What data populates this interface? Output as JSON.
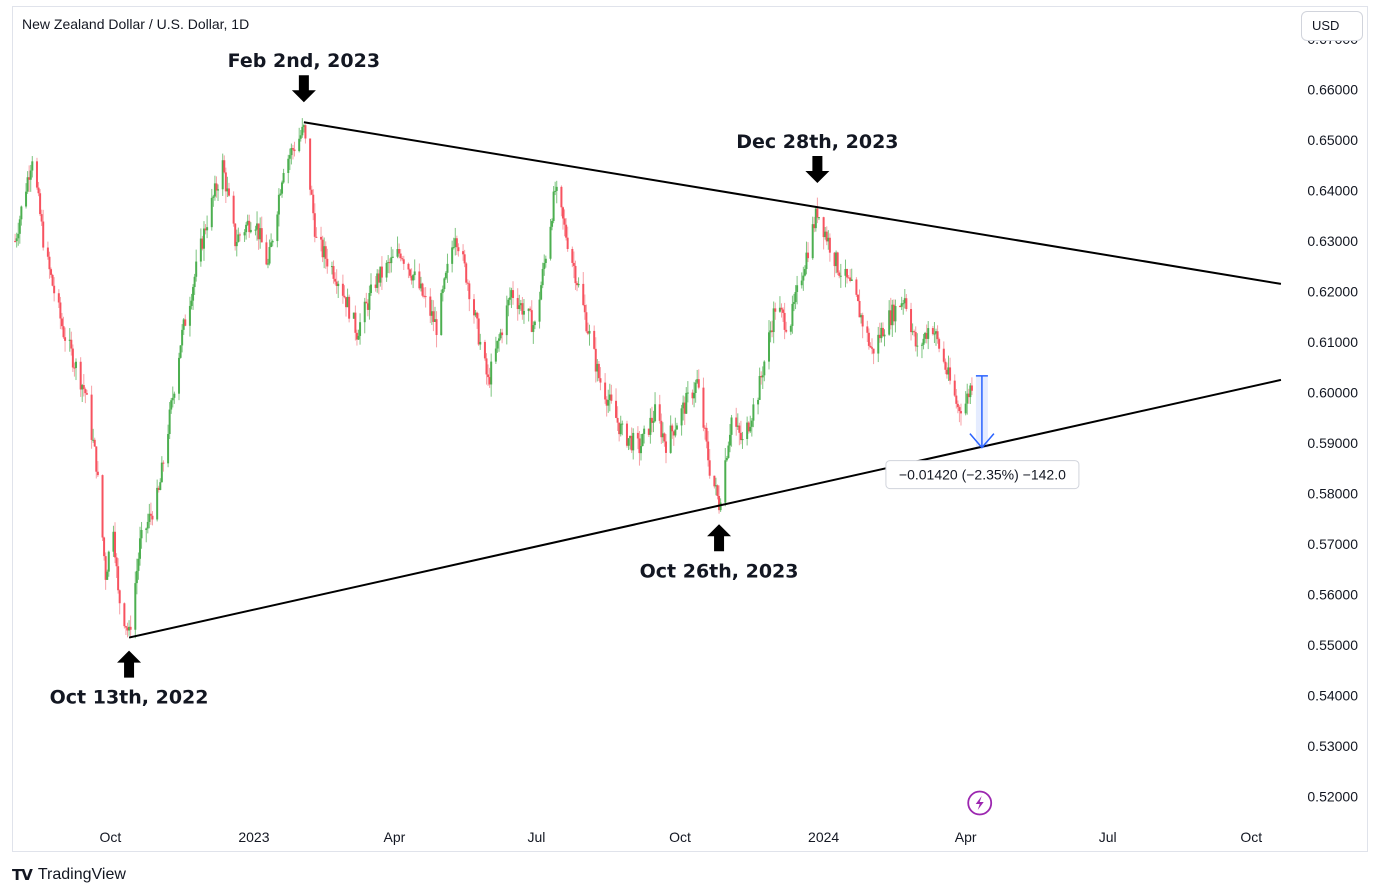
{
  "header": {
    "title": "New Zealand Dollar / U.S. Dollar, 1D",
    "currency_button": "USD"
  },
  "footer": {
    "brand": "TradingView",
    "brand_logo": "TV"
  },
  "colors": {
    "up": "#4caf50",
    "down": "#f7525f",
    "wick_up": "#7cc47f",
    "wick_down": "#f7a0a6",
    "trendline": "#000000",
    "measure": "#2962ff",
    "badge": "#9c27b0"
  },
  "chart_data": {
    "type": "candlestick",
    "title": "New Zealand Dollar / U.S. Dollar, 1D",
    "y_axis": {
      "position": "right",
      "ylim": [
        0.515,
        0.6765
      ],
      "ticks": [
        "0.67000",
        "0.66000",
        "0.65000",
        "0.64000",
        "0.63000",
        "0.62000",
        "0.61000",
        "0.60000",
        "0.59000",
        "0.58000",
        "0.57000",
        "0.56000",
        "0.55000",
        "0.54000",
        "0.53000",
        "0.52000"
      ]
    },
    "x_axis": {
      "ticks": [
        {
          "label": "Oct",
          "date": "2022-10-01"
        },
        {
          "label": "2023",
          "date": "2023-01-01"
        },
        {
          "label": "Apr",
          "date": "2023-04-01"
        },
        {
          "label": "Jul",
          "date": "2023-07-01"
        },
        {
          "label": "Oct",
          "date": "2023-10-01"
        },
        {
          "label": "2024",
          "date": "2024-01-01"
        },
        {
          "label": "Apr",
          "date": "2024-04-01"
        },
        {
          "label": "Jul",
          "date": "2024-07-01"
        },
        {
          "label": "Oct",
          "date": "2024-10-01"
        }
      ],
      "xlim": [
        "2022-07-30",
        "2024-10-29"
      ]
    },
    "price_path": [
      [
        "2022-08-01",
        0.63
      ],
      [
        "2022-08-12",
        0.647
      ],
      [
        "2022-08-20",
        0.628
      ],
      [
        "2022-09-01",
        0.612
      ],
      [
        "2022-09-15",
        0.6
      ],
      [
        "2022-09-22",
        0.586
      ],
      [
        "2022-09-28",
        0.564
      ],
      [
        "2022-10-03",
        0.574
      ],
      [
        "2022-10-06",
        0.56
      ],
      [
        "2022-10-13",
        0.552
      ],
      [
        "2022-10-20",
        0.57
      ],
      [
        "2022-11-01",
        0.58
      ],
      [
        "2022-11-15",
        0.61
      ],
      [
        "2022-12-01",
        0.633
      ],
      [
        "2022-12-12",
        0.645
      ],
      [
        "2022-12-20",
        0.63
      ],
      [
        "2023-01-01",
        0.635
      ],
      [
        "2023-01-10",
        0.625
      ],
      [
        "2023-01-20",
        0.645
      ],
      [
        "2023-02-02",
        0.652
      ],
      [
        "2023-02-10",
        0.63
      ],
      [
        "2023-02-25",
        0.622
      ],
      [
        "2023-03-08",
        0.612
      ],
      [
        "2023-03-20",
        0.622
      ],
      [
        "2023-04-05",
        0.628
      ],
      [
        "2023-04-15",
        0.622
      ],
      [
        "2023-04-28",
        0.613
      ],
      [
        "2023-05-10",
        0.632
      ],
      [
        "2023-05-18",
        0.622
      ],
      [
        "2023-05-31",
        0.602
      ],
      [
        "2023-06-15",
        0.62
      ],
      [
        "2023-06-30",
        0.613
      ],
      [
        "2023-07-13",
        0.64
      ],
      [
        "2023-07-25",
        0.625
      ],
      [
        "2023-08-10",
        0.603
      ],
      [
        "2023-08-25",
        0.592
      ],
      [
        "2023-09-05",
        0.589
      ],
      [
        "2023-09-15",
        0.596
      ],
      [
        "2023-09-22",
        0.59
      ],
      [
        "2023-10-05",
        0.598
      ],
      [
        "2023-10-12",
        0.602
      ],
      [
        "2023-10-20",
        0.585
      ],
      [
        "2023-10-26",
        0.578
      ],
      [
        "2023-11-03",
        0.595
      ],
      [
        "2023-11-10",
        0.59
      ],
      [
        "2023-11-20",
        0.6
      ],
      [
        "2023-12-01",
        0.617
      ],
      [
        "2023-12-10",
        0.613
      ],
      [
        "2023-12-20",
        0.626
      ],
      [
        "2023-12-28",
        0.636
      ],
      [
        "2024-01-10",
        0.625
      ],
      [
        "2024-01-20",
        0.62
      ],
      [
        "2024-02-01",
        0.608
      ],
      [
        "2024-02-10",
        0.614
      ],
      [
        "2024-02-22",
        0.619
      ],
      [
        "2024-03-01",
        0.608
      ],
      [
        "2024-03-10",
        0.614
      ],
      [
        "2024-03-20",
        0.604
      ],
      [
        "2024-03-27",
        0.597
      ],
      [
        "2024-04-01",
        0.598
      ],
      [
        "2024-04-05",
        0.602
      ]
    ],
    "trendlines": [
      {
        "name": "resistance",
        "from": {
          "date": "2023-02-02",
          "value": 0.6535
        },
        "to": {
          "date": "2024-10-20",
          "value": 0.6215
        }
      },
      {
        "name": "support",
        "from": {
          "date": "2022-10-13",
          "value": 0.5515
        },
        "to": {
          "date": "2024-10-20",
          "value": 0.6025
        }
      }
    ],
    "annotations": [
      {
        "label": "Feb 2nd, 2023",
        "date": "2023-02-02",
        "value": 0.6535,
        "arrow": "down"
      },
      {
        "label": "Dec 28th, 2023",
        "date": "2023-12-28",
        "value": 0.6375,
        "arrow": "down"
      },
      {
        "label": "Oct 26th, 2023",
        "date": "2023-10-26",
        "value": 0.5765,
        "arrow": "up"
      },
      {
        "label": "Oct 13th, 2022",
        "date": "2022-10-13",
        "value": 0.5515,
        "arrow": "up"
      }
    ],
    "measure": {
      "from": {
        "date": "2024-04-05",
        "value": 0.6033
      },
      "to": {
        "date": "2024-04-05",
        "value": 0.5891
      },
      "label": "−0.01420 (−2.35%) −142.0"
    },
    "grid": false,
    "legend": "none"
  }
}
